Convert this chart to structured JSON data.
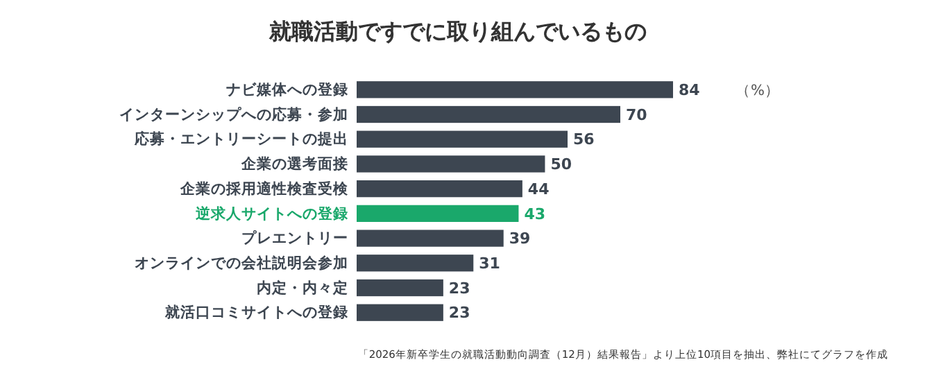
{
  "chart_data": {
    "type": "bar",
    "orientation": "horizontal",
    "title": "就職活動ですでに取り組んでいるもの",
    "categories": [
      "ナビ媒体への登録",
      "インターンシップへの応募・参加",
      "応募・エントリーシートの提出",
      "企業の選考面接",
      "企業の採用適性検査受検",
      "逆求人サイトへの登録",
      "プレエントリー",
      "オンラインでの会社説明会参加",
      "内定・内々定",
      "就活口コミサイトへの登録"
    ],
    "values": [
      84,
      70,
      56,
      50,
      44,
      43,
      39,
      31,
      23,
      23
    ],
    "colors": [
      "#3d4651",
      "#3d4651",
      "#3d4651",
      "#3d4651",
      "#3d4651",
      "#1aa86b",
      "#3d4651",
      "#3d4651",
      "#3d4651",
      "#3d4651"
    ],
    "data_labels": true,
    "annotations": [
      "（%）",
      "「2026年新卒学生の就職活動動向調査（12月）結果報告」より上位10項目を抽出、弊社にてグラフを作成"
    ]
  }
}
